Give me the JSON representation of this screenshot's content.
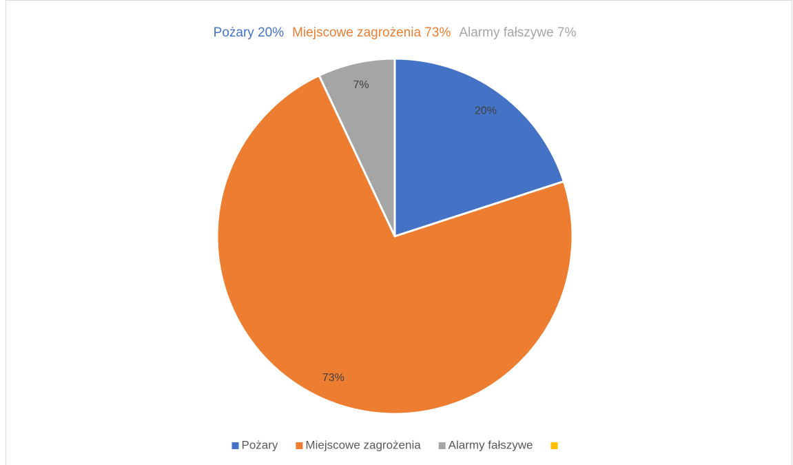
{
  "chart_data": {
    "type": "pie",
    "title": [
      "Pożary 20%",
      "Miejscowe zagrożenia 73%",
      "Alarmy fałszywe 7%"
    ],
    "categories": [
      "Pożary",
      "Miejscowe zagrożenia",
      "Alarmy fałszywe",
      null
    ],
    "values": [
      20,
      73,
      7,
      0
    ],
    "value_labels": [
      "20%",
      "73%",
      "7%",
      null
    ],
    "colors": [
      "#4472c4",
      "#ed7d31",
      "#a5a5a5",
      "#ffc000"
    ],
    "legend": "bottom"
  }
}
